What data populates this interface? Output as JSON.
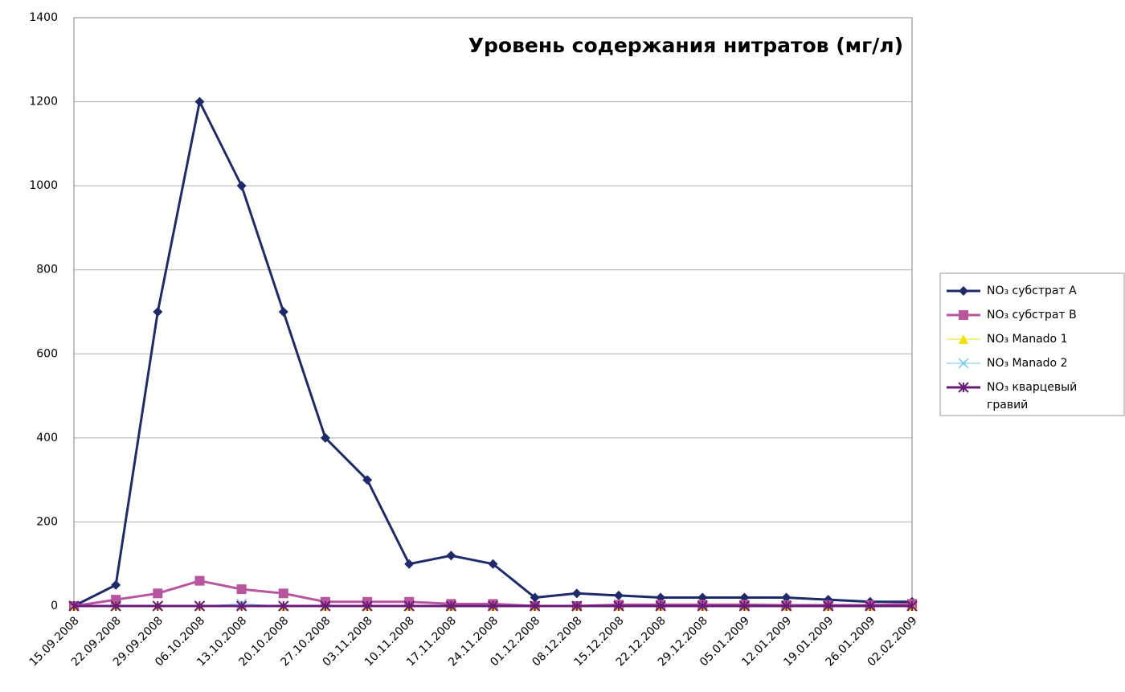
{
  "chart_data": {
    "type": "line",
    "title": "Уровень содержания нитратов (мг/л)",
    "categories": [
      "15.09.2008",
      "22.09.2008",
      "29.09.2008",
      "06.10.2008",
      "13.10.2008",
      "20.10.2008",
      "27.10.2008",
      "03.11.2008",
      "10.11.2008",
      "17.11.2008",
      "24.11.2008",
      "01.12.2008",
      "08.12.2008",
      "15.12.2008",
      "22.12.2008",
      "29.12.2008",
      "05.01.2009",
      "12.01.2009",
      "19.01.2009",
      "26.01.2009",
      "02.02.2009"
    ],
    "series": [
      {
        "name": "NO₃ субстрат A",
        "color": "#1f2a6b",
        "marker": "diamond",
        "values": [
          0,
          50,
          700,
          1200,
          1000,
          700,
          400,
          300,
          100,
          120,
          100,
          20,
          30,
          25,
          20,
          20,
          20,
          20,
          15,
          10,
          10
        ]
      },
      {
        "name": "NO₃ субстрат B",
        "color": "#b9559f",
        "marker": "square",
        "values": [
          0,
          15,
          30,
          60,
          40,
          30,
          10,
          10,
          10,
          5,
          5,
          0,
          0,
          3,
          3,
          3,
          3,
          2,
          2,
          2,
          5
        ]
      },
      {
        "name": "NO₃ Manado 1",
        "color": "#f2e200",
        "marker": "triangle",
        "values": [
          0,
          2,
          2,
          2,
          2,
          0,
          0,
          0,
          0,
          0,
          0,
          0,
          0,
          0,
          0,
          0,
          0,
          0,
          0,
          0,
          0
        ]
      },
      {
        "name": "NO₃ Manado 2",
        "color": "#6ec6e8",
        "marker": "x",
        "values": [
          0,
          0,
          0,
          0,
          5,
          0,
          0,
          0,
          0,
          0,
          0,
          0,
          0,
          0,
          0,
          0,
          0,
          0,
          0,
          0,
          0
        ]
      },
      {
        "name": "NO₃ кварцевый гравий",
        "color": "#6a1a7a",
        "marker": "star",
        "values": [
          0,
          0,
          0,
          0,
          0,
          0,
          0,
          0,
          0,
          0,
          0,
          0,
          0,
          0,
          0,
          0,
          0,
          0,
          0,
          0,
          0
        ]
      }
    ],
    "ylim": [
      0,
      1400
    ],
    "yticks": [
      0,
      200,
      400,
      600,
      800,
      1000,
      1200,
      1400
    ],
    "grid": true,
    "legend": "right"
  }
}
